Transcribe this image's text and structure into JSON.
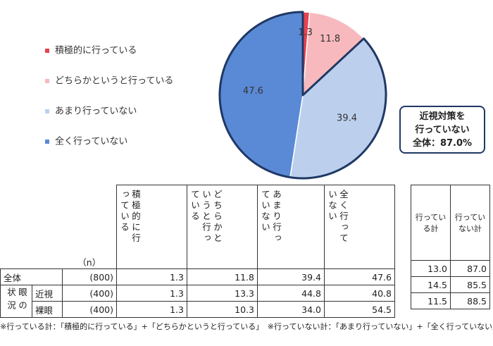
{
  "chart_data": {
    "type": "pie",
    "series": [
      {
        "name": "積極的に行っている",
        "color": "#e8424d",
        "values": [
          1.3
        ]
      },
      {
        "name": "どちらかというと行っている",
        "color": "#f7b9bd",
        "values": [
          11.8
        ]
      },
      {
        "name": "あまり行っていない",
        "color": "#bcd0ee",
        "values": [
          39.4
        ]
      },
      {
        "name": "全く行っていない",
        "color": "#5a8ad6",
        "values": [
          47.6
        ]
      }
    ],
    "annotation": [
      "近視対策を",
      "行っていない",
      "全体：87.0%"
    ]
  },
  "table": {
    "n_header": "（n）",
    "headers": [
      "積極的に行っている",
      "どちらかというと行っている",
      "あまり行っていない",
      "全く行っていない"
    ],
    "total_headers": [
      "行っている計",
      "行っていない計"
    ],
    "group_label": "眼の状況",
    "rows": [
      {
        "label": "全体",
        "n": "(800)",
        "values": [
          "1.3",
          "11.8",
          "39.4",
          "47.6"
        ],
        "totals": [
          "13.0",
          "87.0"
        ]
      },
      {
        "label": "近視",
        "n": "(400)",
        "values": [
          "1.3",
          "13.3",
          "44.8",
          "40.8"
        ],
        "totals": [
          "14.5",
          "85.5"
        ]
      },
      {
        "label": "裸眼",
        "n": "(400)",
        "values": [
          "1.3",
          "10.3",
          "34.0",
          "54.5"
        ],
        "totals": [
          "11.5",
          "88.5"
        ]
      }
    ]
  },
  "footnote": "※行っている計：「積極的に行っている」+「どちらかというと行っている」　※行っていない計：「あまり行っていない」+「全く行っていない」"
}
